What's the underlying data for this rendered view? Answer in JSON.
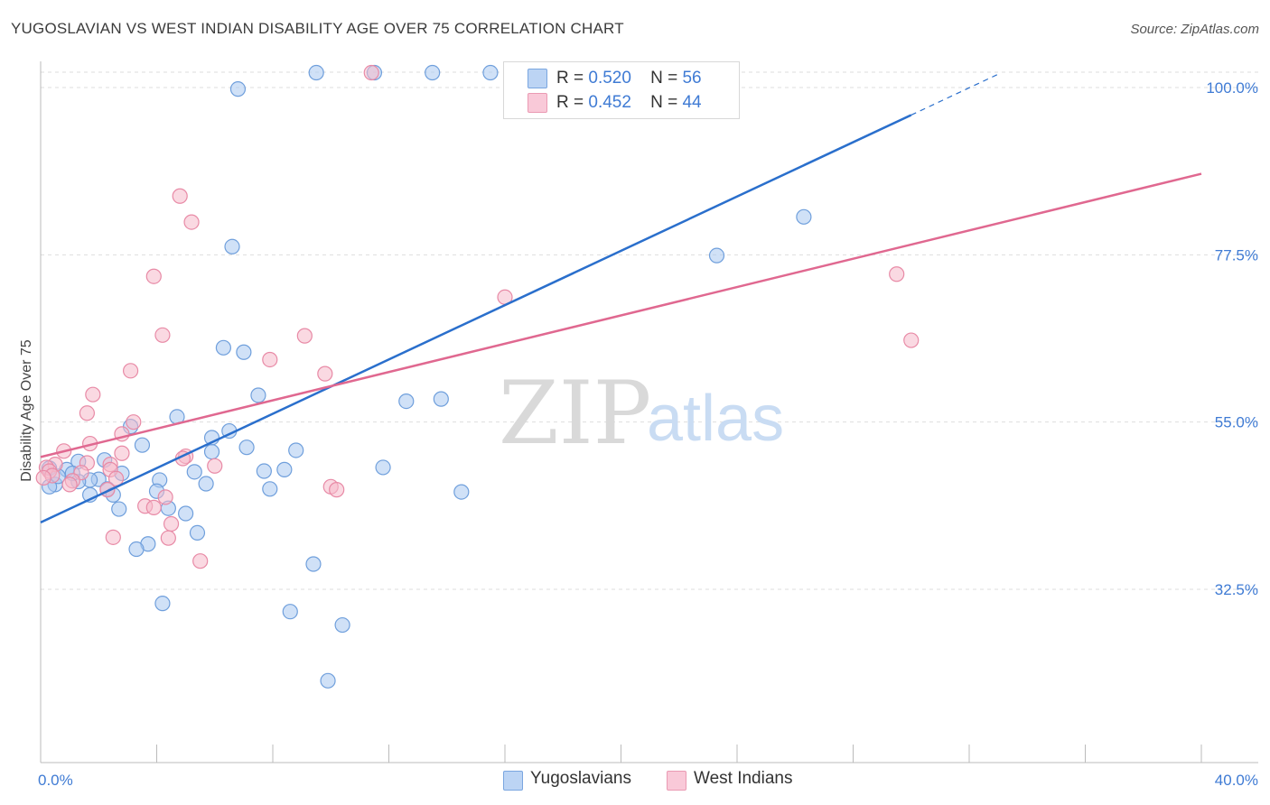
{
  "header": {
    "title": "YUGOSLAVIAN VS WEST INDIAN DISABILITY AGE OVER 75 CORRELATION CHART",
    "source": "Source: ZipAtlas.com"
  },
  "watermark": {
    "zip": "ZIP",
    "atlas": "atlas"
  },
  "legend": {
    "rows": [
      {
        "r_label": "R =",
        "r_value": "0.520",
        "n_label": "N =",
        "n_value": "56"
      },
      {
        "r_label": "R =",
        "r_value": "0.452",
        "n_label": "N =",
        "n_value": "44"
      }
    ]
  },
  "bottom_legend": {
    "items": [
      {
        "label": "Yugoslavians"
      },
      {
        "label": "West Indians"
      }
    ]
  },
  "colors": {
    "blue_fill": "#a9c8f0",
    "blue_stroke": "#6f9fdc",
    "blue_line": "#2a6fcc",
    "pink_fill": "#f5b9cb",
    "pink_stroke": "#e88aa6",
    "pink_line": "#e06890",
    "grid": "#dddddd",
    "tick_text": "#3f7bd4"
  },
  "chart_data": {
    "type": "scatter",
    "title": "YUGOSLAVIAN VS WEST INDIAN DISABILITY AGE OVER 75 CORRELATION CHART",
    "xlabel": "",
    "ylabel": "Disability Age Over 75",
    "xlim": [
      0,
      40
    ],
    "ylim": [
      15,
      102
    ],
    "x_tick_labels": [
      "0.0%",
      "40.0%"
    ],
    "y_ticks": [
      32.5,
      55.0,
      77.5,
      100.0
    ],
    "y_tick_labels": [
      "32.5%",
      "55.0%",
      "77.5%",
      "100.0%"
    ],
    "grid": true,
    "legend_position": "top-center",
    "series": [
      {
        "name": "Yugoslavians",
        "color": "#a9c8f0",
        "trend": {
          "x": [
            0,
            30.0
          ],
          "y": [
            41.5,
            96.3
          ],
          "dashed_to": [
            33.0,
            101.8
          ]
        },
        "points": [
          [
            9.5,
            102.0
          ],
          [
            11.5,
            102.0
          ],
          [
            13.5,
            102.0
          ],
          [
            15.5,
            102.0
          ],
          [
            6.8,
            99.8
          ],
          [
            26.3,
            82.6
          ],
          [
            23.3,
            77.4
          ],
          [
            6.6,
            78.6
          ],
          [
            6.3,
            65.0
          ],
          [
            7.0,
            64.4
          ],
          [
            7.5,
            58.6
          ],
          [
            12.6,
            57.8
          ],
          [
            13.8,
            58.1
          ],
          [
            4.7,
            55.7
          ],
          [
            3.1,
            54.4
          ],
          [
            6.5,
            53.8
          ],
          [
            5.9,
            52.9
          ],
          [
            3.5,
            51.9
          ],
          [
            7.1,
            51.6
          ],
          [
            8.8,
            51.2
          ],
          [
            5.9,
            51.0
          ],
          [
            2.2,
            49.9
          ],
          [
            1.3,
            49.7
          ],
          [
            11.8,
            48.9
          ],
          [
            8.4,
            48.6
          ],
          [
            7.7,
            48.4
          ],
          [
            5.3,
            48.3
          ],
          [
            2.8,
            48.1
          ],
          [
            0.9,
            48.6
          ],
          [
            0.3,
            48.8
          ],
          [
            4.1,
            47.2
          ],
          [
            5.7,
            46.7
          ],
          [
            2.0,
            47.3
          ],
          [
            1.7,
            47.2
          ],
          [
            1.3,
            47.0
          ],
          [
            0.5,
            46.6
          ],
          [
            0.3,
            46.3
          ],
          [
            2.3,
            46.0
          ],
          [
            7.9,
            46.0
          ],
          [
            14.5,
            45.6
          ],
          [
            4.0,
            45.7
          ],
          [
            2.5,
            45.2
          ],
          [
            1.7,
            45.2
          ],
          [
            4.4,
            43.4
          ],
          [
            2.7,
            43.3
          ],
          [
            5.0,
            42.7
          ],
          [
            5.4,
            40.1
          ],
          [
            3.7,
            38.6
          ],
          [
            3.3,
            37.9
          ],
          [
            9.4,
            35.9
          ],
          [
            4.2,
            30.6
          ],
          [
            8.6,
            29.5
          ],
          [
            10.4,
            27.7
          ],
          [
            9.9,
            20.2
          ],
          [
            0.6,
            47.7
          ],
          [
            1.1,
            48.1
          ]
        ]
      },
      {
        "name": "West Indians",
        "color": "#f5b9cb",
        "trend": {
          "x": [
            0,
            40.0
          ],
          "y": [
            50.3,
            88.4
          ]
        },
        "points": [
          [
            11.4,
            102.0
          ],
          [
            4.8,
            85.4
          ],
          [
            5.2,
            81.9
          ],
          [
            3.9,
            74.6
          ],
          [
            29.5,
            74.9
          ],
          [
            16.0,
            71.8
          ],
          [
            4.2,
            66.7
          ],
          [
            9.1,
            66.6
          ],
          [
            30.0,
            66.0
          ],
          [
            7.9,
            63.4
          ],
          [
            3.1,
            61.9
          ],
          [
            9.8,
            61.5
          ],
          [
            1.8,
            58.7
          ],
          [
            1.6,
            56.2
          ],
          [
            3.2,
            55.0
          ],
          [
            2.8,
            53.4
          ],
          [
            1.7,
            52.1
          ],
          [
            0.8,
            51.1
          ],
          [
            2.8,
            50.8
          ],
          [
            5.0,
            50.4
          ],
          [
            4.9,
            50.1
          ],
          [
            1.6,
            49.5
          ],
          [
            2.4,
            49.3
          ],
          [
            6.0,
            49.1
          ],
          [
            0.5,
            49.3
          ],
          [
            0.2,
            48.9
          ],
          [
            0.3,
            48.4
          ],
          [
            2.4,
            48.6
          ],
          [
            1.4,
            48.2
          ],
          [
            0.4,
            47.8
          ],
          [
            0.1,
            47.5
          ],
          [
            2.6,
            47.4
          ],
          [
            1.1,
            47.1
          ],
          [
            10.0,
            46.3
          ],
          [
            10.2,
            45.9
          ],
          [
            2.3,
            45.9
          ],
          [
            4.3,
            44.9
          ],
          [
            3.6,
            43.7
          ],
          [
            3.9,
            43.5
          ],
          [
            4.5,
            41.3
          ],
          [
            2.5,
            39.5
          ],
          [
            4.4,
            39.4
          ],
          [
            5.5,
            36.3
          ],
          [
            1.0,
            46.6
          ]
        ]
      }
    ]
  }
}
